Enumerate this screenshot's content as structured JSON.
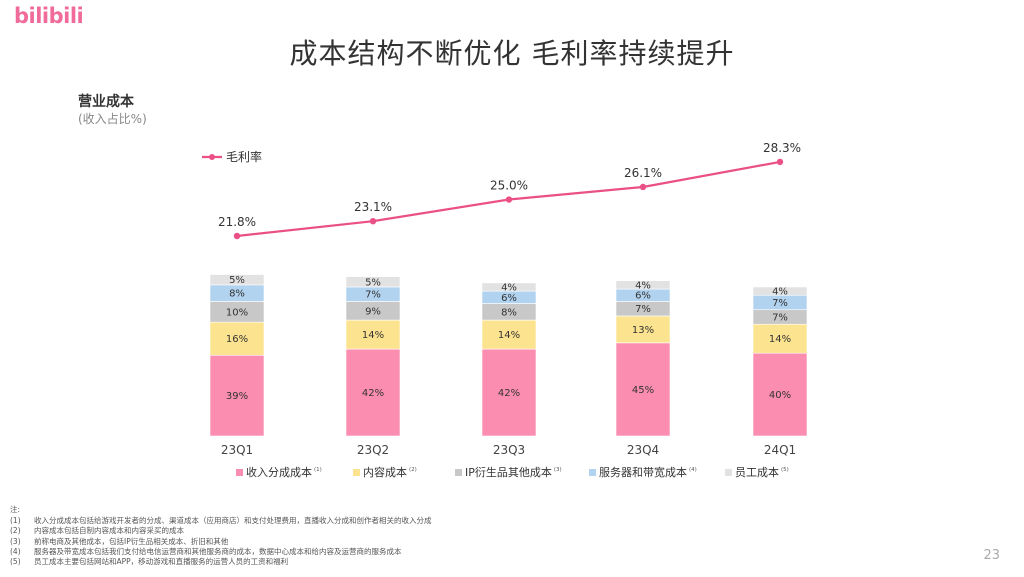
{
  "logo": "bilibili",
  "page_title": "成本结构不断优化 毛利率持续提升",
  "chart_data": {
    "type": "bar",
    "title": "营业成本",
    "subtitle": "(收入占比%)",
    "categories": [
      "23Q1",
      "23Q2",
      "23Q3",
      "23Q4",
      "24Q1"
    ],
    "stacked": true,
    "series": [
      {
        "name": "收入分成成本",
        "note": "(1)",
        "color": "#fb8db0",
        "values": [
          39,
          42,
          42,
          45,
          40
        ],
        "labels": [
          "39%",
          "42%",
          "42%",
          "45%",
          "40%"
        ]
      },
      {
        "name": "内容成本",
        "note": "(2)",
        "color": "#fce38f",
        "values": [
          16,
          14,
          14,
          13,
          14
        ],
        "labels": [
          "16%",
          "14%",
          "14%",
          "13%",
          "14%"
        ]
      },
      {
        "name": "IP衍生品其他成本",
        "note": "(3)",
        "color": "#c8c8c8",
        "values": [
          10,
          9,
          8,
          7,
          7
        ],
        "labels": [
          "10%",
          "9%",
          "8%",
          "7%",
          "7%"
        ]
      },
      {
        "name": "服务器和带宽成本",
        "note": "(4)",
        "color": "#b1d3f0",
        "values": [
          8,
          7,
          6,
          6,
          7
        ],
        "labels": [
          "8%",
          "7%",
          "6%",
          "6%",
          "7%"
        ]
      },
      {
        "name": "员工成本",
        "note": "(5)",
        "color": "#e2e2e2",
        "values": [
          5,
          5,
          4,
          4,
          4
        ],
        "labels": [
          "5%",
          "5%",
          "4%",
          "4%",
          "4%"
        ]
      }
    ],
    "line": {
      "name": "毛利率",
      "color": "#ea4f86",
      "values": [
        21.8,
        23.1,
        25.0,
        26.1,
        28.3
      ],
      "labels": [
        "21.8%",
        "23.1%",
        "25.0%",
        "26.1%",
        "28.3%"
      ]
    },
    "legend_position": "bottom",
    "line_legend_position": "top-left",
    "grid": false
  },
  "footnotes": {
    "heading": "注:",
    "items": [
      {
        "num": "(1)",
        "text": "收入分成成本包括给游戏开发者的分成、渠道成本（应用商店）和支付处理费用，直播收入分成和创作者相关的收入分成"
      },
      {
        "num": "(2)",
        "text": "内容成本包括自制内容成本和内容采买的成本"
      },
      {
        "num": "(3)",
        "text": "前称电商及其他成本，包括IP衍生品相关成本、折旧和其他"
      },
      {
        "num": "(4)",
        "text": "服务器及带宽成本包括我们支付给电信运营商和其他服务商的成本，数据中心成本和给内容及运营商的服务成本"
      },
      {
        "num": "(5)",
        "text": "员工成本主要包括网站和APP，移动游戏和直播服务的运营人员的工资和福利"
      }
    ]
  },
  "page_number": "23"
}
